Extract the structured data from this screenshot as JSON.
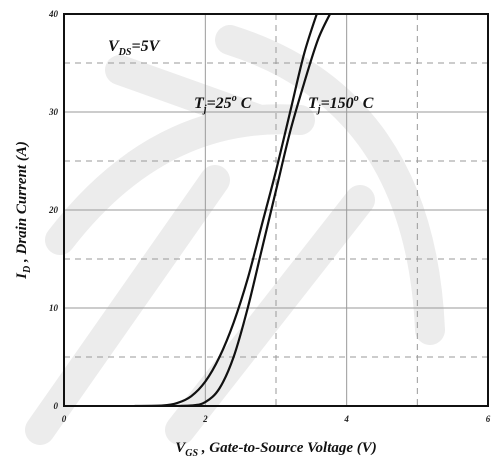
{
  "chart_data": {
    "type": "line",
    "title": "",
    "x_axis": {
      "label_symbol": "V",
      "label_subscript": "GS",
      "label_rest": " , Gate-to-Source Voltage (V)",
      "range": [
        0,
        6
      ],
      "ticks": [
        "0",
        "2",
        "4",
        "6"
      ],
      "major_step": 2,
      "minor_dashed_at": [
        3,
        5
      ]
    },
    "y_axis": {
      "label_symbol": "I",
      "label_subscript": "D",
      "label_rest": " , Drain Current (A)",
      "range": [
        0,
        40
      ],
      "ticks": [
        "0",
        "10",
        "20",
        "30",
        "40"
      ],
      "major_step": 10,
      "minor_dashed_at": [
        5,
        15,
        25,
        35
      ]
    },
    "grid": true,
    "annotations": {
      "condition": {
        "symbol": "V",
        "subscript": "DS",
        "text": "=5V"
      },
      "series_labels": [
        {
          "symbol": "T",
          "subscript": "j",
          "text": "=25",
          "sup": "o",
          "unit": " C"
        },
        {
          "symbol": "T",
          "subscript": "j",
          "text": "=150",
          "sup": "o",
          "unit": " C"
        }
      ]
    },
    "series": [
      {
        "x": [
          1.0,
          1.4,
          1.6,
          1.8,
          2.0,
          2.2,
          2.4,
          2.6,
          2.8,
          3.0,
          3.2,
          3.4,
          3.6
        ],
        "y": [
          0,
          0.05,
          0.3,
          1.0,
          2.5,
          5.0,
          8.5,
          13.0,
          18.5,
          24.0,
          30.0,
          36.0,
          40.5
        ]
      },
      {
        "x": [
          1.4,
          1.8,
          2.0,
          2.2,
          2.4,
          2.6,
          2.8,
          3.0,
          3.2,
          3.4,
          3.6,
          3.8
        ],
        "y": [
          0,
          0.05,
          0.4,
          1.8,
          5.0,
          10.0,
          16.0,
          22.0,
          28.0,
          33.0,
          37.5,
          40.5
        ]
      }
    ],
    "colors": {
      "line": "#111111",
      "grid": "#9a9a9a",
      "watermark": "#ececec"
    }
  }
}
